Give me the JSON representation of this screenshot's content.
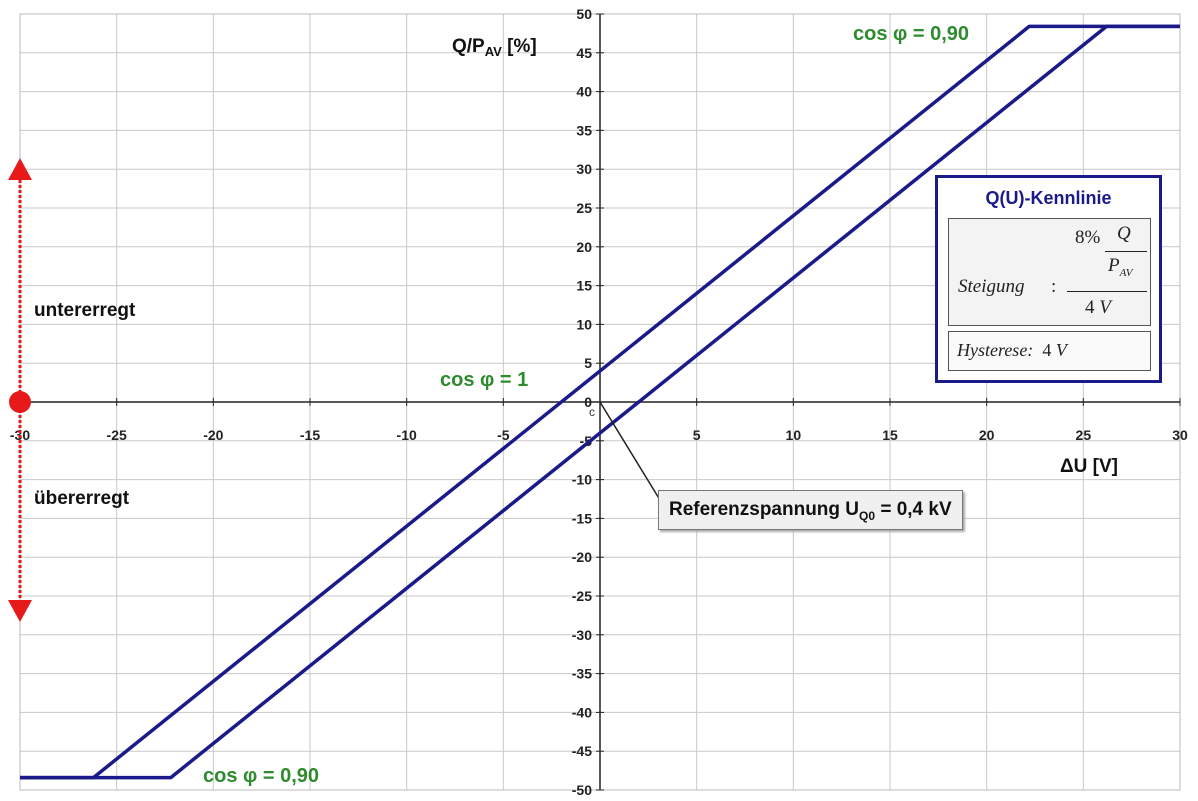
{
  "chart_data": {
    "type": "line",
    "xlabel": "ΔU [V]",
    "ylabel_main": "Q/P",
    "ylabel_sub": "AV",
    "ylabel_unit": " [%]",
    "xlim": [
      -30,
      30
    ],
    "ylim": [
      -50,
      50
    ],
    "x_ticks": [
      -30,
      -25,
      -20,
      -15,
      -10,
      -5,
      0,
      5,
      10,
      15,
      20,
      25,
      30
    ],
    "y_ticks": [
      -50,
      -45,
      -40,
      -35,
      -30,
      -25,
      -20,
      -15,
      -10,
      -5,
      0,
      5,
      10,
      15,
      20,
      25,
      30,
      35,
      40,
      45,
      50
    ],
    "grid": true,
    "series": [
      {
        "x": [
          -30,
          -26.2,
          22.2,
          30
        ],
        "y": [
          -48.4,
          -48.4,
          48.4,
          48.4
        ]
      },
      {
        "x": [
          -30,
          -22.2,
          26.2,
          30
        ],
        "y": [
          -48.4,
          -48.4,
          48.4,
          48.4
        ]
      }
    ],
    "annotations": {
      "cos_top": "cos φ = 0,90",
      "cos_bottom": "cos φ = 0,90",
      "cos_one": "cos φ = 1",
      "untererregt": "untererregt",
      "uebererregt": "übererregt",
      "origin_marker": "c"
    },
    "reference": {
      "label_main": "Referenzspannung U",
      "label_sub": "Q0",
      "label_rest": " = 0,4 kV"
    },
    "formula": {
      "title": "Q(U)-Kennlinie",
      "steigung": "Steigung",
      "colon": ":",
      "pct": "8%",
      "q": "Q",
      "p": "P",
      "p_sub": "AV",
      "four": "4",
      "v": "V",
      "hysterese": "Hysterese:",
      "hyst_value": "4",
      "hyst_unit": "V"
    },
    "colors": {
      "line": "#1a1a8a",
      "arrow": "#e8191a",
      "label_green": "#2e8b2e",
      "grid": "#c8c8c8"
    }
  }
}
